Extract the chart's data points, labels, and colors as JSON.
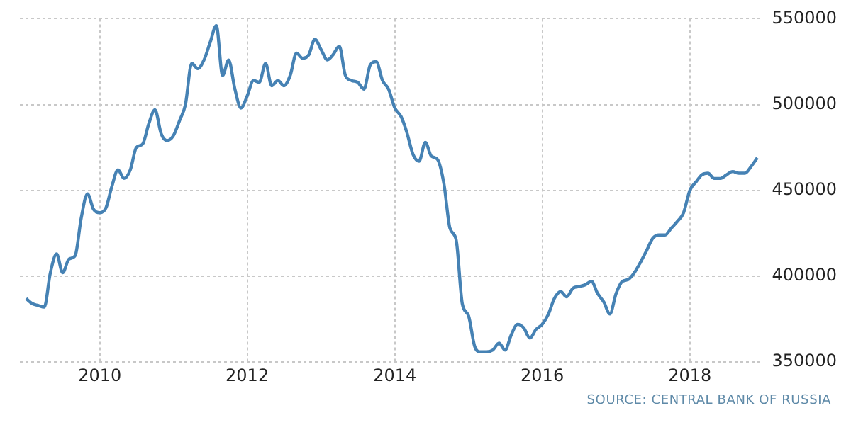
{
  "chart_data": {
    "type": "line",
    "color": "#4682b4",
    "grid": true,
    "legend": false,
    "marker": "none",
    "x": [
      "2009-01",
      "2009-02",
      "2009-03",
      "2009-04",
      "2009-05",
      "2009-06",
      "2009-07",
      "2009-08",
      "2009-09",
      "2009-10",
      "2009-11",
      "2009-12",
      "2010-01",
      "2010-02",
      "2010-03",
      "2010-04",
      "2010-05",
      "2010-06",
      "2010-07",
      "2010-08",
      "2010-09",
      "2010-10",
      "2010-11",
      "2010-12",
      "2011-01",
      "2011-02",
      "2011-03",
      "2011-04",
      "2011-05",
      "2011-06",
      "2011-07",
      "2011-08",
      "2011-09",
      "2011-10",
      "2011-11",
      "2011-12",
      "2012-01",
      "2012-02",
      "2012-03",
      "2012-04",
      "2012-05",
      "2012-06",
      "2012-07",
      "2012-08",
      "2012-09",
      "2012-10",
      "2012-11",
      "2012-12",
      "2013-01",
      "2013-02",
      "2013-03",
      "2013-04",
      "2013-05",
      "2013-06",
      "2013-07",
      "2013-08",
      "2013-09",
      "2013-10",
      "2013-11",
      "2013-12",
      "2014-01",
      "2014-02",
      "2014-03",
      "2014-04",
      "2014-05",
      "2014-06",
      "2014-07",
      "2014-08",
      "2014-09",
      "2014-10",
      "2014-11",
      "2014-12",
      "2015-01",
      "2015-02",
      "2015-03",
      "2015-04",
      "2015-05",
      "2015-06",
      "2015-07",
      "2015-08",
      "2015-09",
      "2015-10",
      "2015-11",
      "2015-12",
      "2016-01",
      "2016-02",
      "2016-03",
      "2016-04",
      "2016-05",
      "2016-06",
      "2016-07",
      "2016-08",
      "2016-09",
      "2016-10",
      "2016-11",
      "2016-12",
      "2017-01",
      "2017-02",
      "2017-03",
      "2017-04",
      "2017-05",
      "2017-06",
      "2017-07",
      "2017-08",
      "2017-09",
      "2017-10",
      "2017-11",
      "2017-12",
      "2018-01",
      "2018-02",
      "2018-03",
      "2018-04",
      "2018-05",
      "2018-06",
      "2018-07",
      "2018-08",
      "2018-09",
      "2018-10",
      "2018-11",
      "2018-12"
    ],
    "values": [
      387000,
      384000,
      383000,
      382000,
      402000,
      413000,
      402000,
      410000,
      412000,
      434000,
      448000,
      439000,
      437000,
      440000,
      452000,
      462000,
      457000,
      462000,
      475000,
      477000,
      489000,
      497000,
      483000,
      479000,
      482000,
      491000,
      500000,
      524000,
      521000,
      526000,
      536000,
      546000,
      517000,
      526000,
      509000,
      498000,
      505000,
      514000,
      513000,
      524000,
      511000,
      514000,
      511000,
      517000,
      530000,
      527000,
      529000,
      538000,
      532000,
      526000,
      529000,
      534000,
      517000,
      514000,
      513000,
      509000,
      523000,
      525000,
      514000,
      509000,
      498000,
      493000,
      484000,
      471000,
      467000,
      478000,
      470000,
      468000,
      454000,
      428000,
      421000,
      384000,
      377000,
      359000,
      356000,
      356000,
      357000,
      361000,
      357000,
      366000,
      372000,
      370000,
      364000,
      369000,
      372000,
      378000,
      387000,
      391000,
      388000,
      393000,
      394000,
      395000,
      397000,
      390000,
      385000,
      378000,
      390000,
      397000,
      398000,
      402000,
      408000,
      415000,
      422000,
      424000,
      424000,
      428000,
      432000,
      437000,
      450000,
      455000,
      459000,
      460000,
      457000,
      457000,
      459000,
      461000,
      460000,
      460000,
      464000,
      469000
    ],
    "xlim": [
      "2008-12-01",
      "2018-12-31"
    ],
    "xticks": [
      "2010",
      "2012",
      "2014",
      "2016",
      "2018"
    ],
    "ylim": [
      350000,
      550000
    ],
    "yticks": [
      350000,
      400000,
      450000,
      500000,
      550000
    ],
    "annotations": [
      "SOURCE: CENTRAL BANK OF RUSSIA"
    ]
  }
}
